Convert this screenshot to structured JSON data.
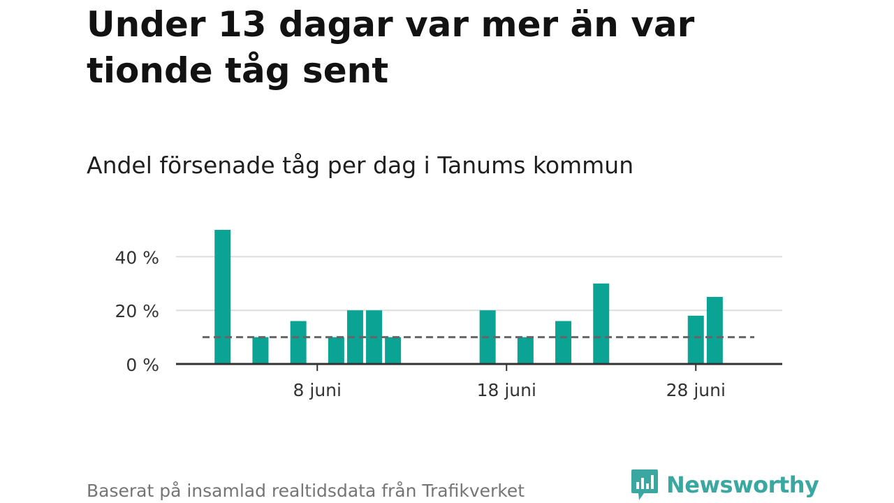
{
  "title": "Under 13 dagar var mer än var tionde tåg sent",
  "subtitle": "Andel försenade tåg per dag i Tanums kommun",
  "footer": "Baserat på insamlad realtidsdata från Trafikverket",
  "brand": {
    "name": "Newsworthy",
    "icon": "newsworthy-logo-icon"
  },
  "colors": {
    "bar": "#0aa394",
    "reference_line": "#666666",
    "axis": "#333333",
    "grid": "#dddddd",
    "brand": "#3aa8a0"
  },
  "chart_data": {
    "type": "bar",
    "x_unit": "day of June",
    "x_range": [
      1,
      30
    ],
    "x": [
      3,
      5,
      7,
      9,
      10,
      11,
      12,
      17,
      19,
      21,
      23,
      28,
      29
    ],
    "values": [
      50,
      10,
      16,
      10,
      20,
      20,
      10,
      20,
      10,
      16,
      30,
      18,
      25
    ],
    "ylim": [
      0,
      50
    ],
    "y_ticks": [
      {
        "value": 0,
        "label": "0 %"
      },
      {
        "value": 20,
        "label": "20 %"
      },
      {
        "value": 40,
        "label": "40 %"
      }
    ],
    "x_ticks": [
      {
        "value": 8,
        "label": "8 juni"
      },
      {
        "value": 18,
        "label": "18 juni"
      },
      {
        "value": 28,
        "label": "28 juni"
      }
    ],
    "reference_line": 10,
    "grid": "horizontal",
    "legend": "none"
  }
}
